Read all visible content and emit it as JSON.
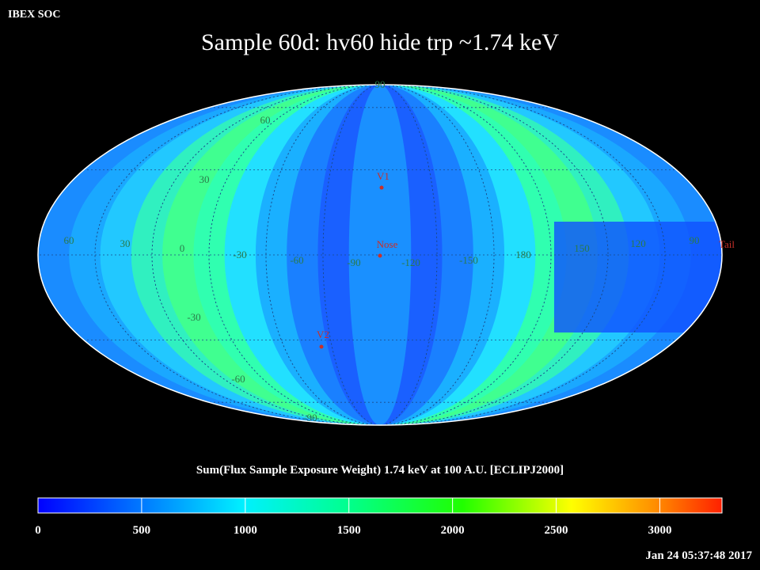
{
  "header": {
    "org": "IBEX SOC",
    "title": "Sample 60d: hv60 hide trp ~1.74 keV"
  },
  "map": {
    "longitude_labels": [
      "60",
      "30",
      "0",
      "-30",
      "-60",
      "-90",
      "-120",
      "-150",
      "180",
      "150",
      "120",
      "90"
    ],
    "latitude_labels": [
      "90",
      "60",
      "30",
      "-30",
      "-60",
      "-90"
    ],
    "markers": [
      "V1",
      "Nose",
      "V2",
      "Tail"
    ]
  },
  "colorbar": {
    "title": "Sum(Flux Sample Exposure Weight)  1.74 keV at 100 A.U. [ECLIPJ2000]",
    "lim": [
      0,
      3300
    ],
    "ticks": [
      0,
      500,
      1000,
      1500,
      2000,
      2500,
      3000
    ]
  },
  "footer": {
    "timestamp": "Jan 24 05:37:48 2017"
  }
}
